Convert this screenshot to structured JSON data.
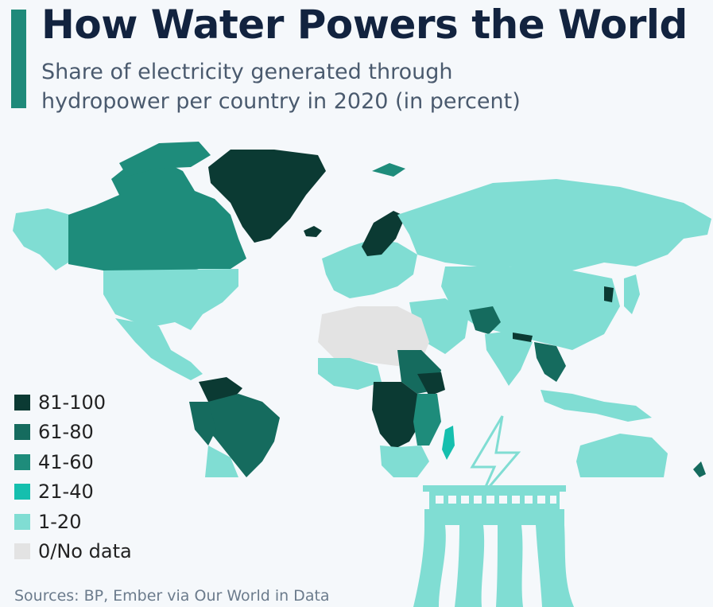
{
  "header": {
    "title": "How Water Powers the World",
    "subtitle": "Share of electricity generated through hydropower per country in 2020 (in percent)"
  },
  "legend": {
    "items": [
      {
        "label": "81-100",
        "color": "#0b3a33"
      },
      {
        "label": "61-80",
        "color": "#156b5e"
      },
      {
        "label": "41-60",
        "color": "#1e8c7b"
      },
      {
        "label": "21-40",
        "color": "#15bfae"
      },
      {
        "label": "1-20",
        "color": "#80ddd3"
      },
      {
        "label": "0/No data",
        "color": "#e3e3e3"
      }
    ]
  },
  "footer": {
    "source": "Sources: BP, Ember via Our World in Data"
  },
  "illustration": {
    "icon": "hydro-dam-lightning-icon"
  }
}
